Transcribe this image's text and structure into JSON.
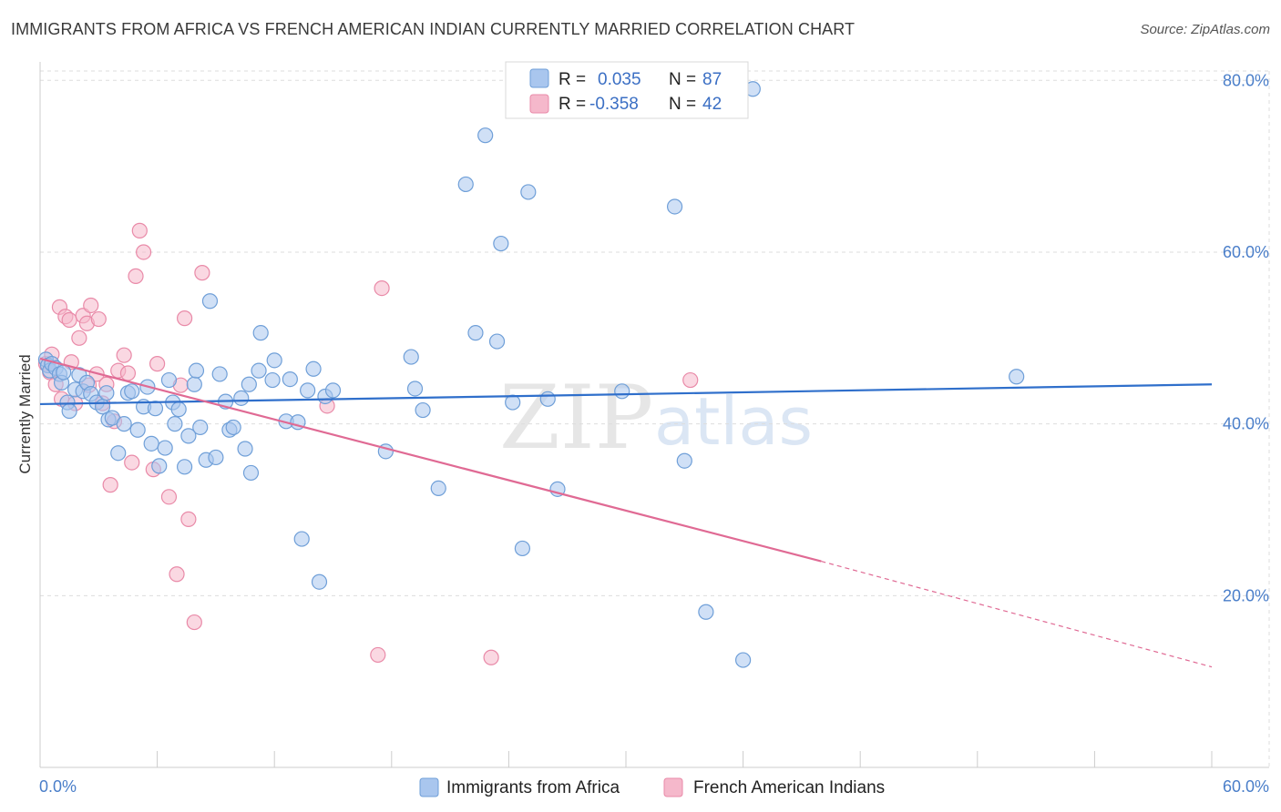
{
  "header": {
    "title": "IMMIGRANTS FROM AFRICA VS FRENCH AMERICAN INDIAN CURRENTLY MARRIED CORRELATION CHART",
    "source": "Source: ZipAtlas.com"
  },
  "watermark": {
    "zip": "ZIP",
    "atlas": "atlas"
  },
  "legend": {
    "rows": [
      {
        "r_label": "R =",
        "r_value": "0.035",
        "n_label": "N =",
        "n_value": "87"
      },
      {
        "r_label": "R =",
        "r_value": "-0.358",
        "n_label": "N =",
        "n_value": "42"
      }
    ]
  },
  "colors": {
    "blue_fill": "#a9c6ee",
    "blue_stroke": "#6f9fd8",
    "blue_line": "#2f6fcb",
    "pink_fill": "#f5b8cb",
    "pink_stroke": "#e98aa8",
    "pink_line": "#e06a94",
    "tick_text": "#4a7ec9",
    "grid": "#dddddd"
  },
  "chart_data": {
    "type": "scatter",
    "title": "IMMIGRANTS FROM AFRICA VS FRENCH AMERICAN INDIAN CURRENTLY MARRIED CORRELATION CHART",
    "xlabel": "",
    "ylabel": "Currently Married",
    "xlim": [
      0,
      60
    ],
    "ylim": [
      0,
      83
    ],
    "x_tick_labels": [
      "0.0%",
      "60.0%"
    ],
    "y_ticks": [
      20,
      40,
      60,
      80
    ],
    "y_tick_labels": [
      "20.0%",
      "40.0%",
      "60.0%",
      "80.0%"
    ],
    "grid": true,
    "legend_position": "top-center",
    "series": [
      {
        "name": "Immigrants from Africa",
        "color": "#a9c6ee",
        "trend": {
          "x": [
            0,
            60
          ],
          "y": [
            42.3,
            44.6
          ],
          "style": "solid"
        },
        "points": [
          [
            0.3,
            47.5
          ],
          [
            0.4,
            46.8
          ],
          [
            0.5,
            46.2
          ],
          [
            0.6,
            47.0
          ],
          [
            0.8,
            46.5
          ],
          [
            1.0,
            45.8
          ],
          [
            1.1,
            44.8
          ],
          [
            1.2,
            46.0
          ],
          [
            1.4,
            42.5
          ],
          [
            1.5,
            41.5
          ],
          [
            1.8,
            44.0
          ],
          [
            2.0,
            45.7
          ],
          [
            2.2,
            43.8
          ],
          [
            2.4,
            44.8
          ],
          [
            2.6,
            43.5
          ],
          [
            2.9,
            42.5
          ],
          [
            3.2,
            42.0
          ],
          [
            3.4,
            43.6
          ],
          [
            3.5,
            40.5
          ],
          [
            3.7,
            40.7
          ],
          [
            4.0,
            36.6
          ],
          [
            4.3,
            40.0
          ],
          [
            4.5,
            43.6
          ],
          [
            4.7,
            43.8
          ],
          [
            5.0,
            39.3
          ],
          [
            5.3,
            42.0
          ],
          [
            5.5,
            44.3
          ],
          [
            5.7,
            37.7
          ],
          [
            5.9,
            41.8
          ],
          [
            6.1,
            35.1
          ],
          [
            6.4,
            37.2
          ],
          [
            6.6,
            45.1
          ],
          [
            6.8,
            42.5
          ],
          [
            6.9,
            40.0
          ],
          [
            7.1,
            41.7
          ],
          [
            7.4,
            35.0
          ],
          [
            7.6,
            38.6
          ],
          [
            7.9,
            44.6
          ],
          [
            8.0,
            46.2
          ],
          [
            8.2,
            39.6
          ],
          [
            8.5,
            35.8
          ],
          [
            8.7,
            54.3
          ],
          [
            9.0,
            36.1
          ],
          [
            9.2,
            45.8
          ],
          [
            9.5,
            42.6
          ],
          [
            9.7,
            39.3
          ],
          [
            9.9,
            39.6
          ],
          [
            10.3,
            43.0
          ],
          [
            10.5,
            37.1
          ],
          [
            10.7,
            44.6
          ],
          [
            10.8,
            34.3
          ],
          [
            11.2,
            46.2
          ],
          [
            11.3,
            50.6
          ],
          [
            11.9,
            45.1
          ],
          [
            12.0,
            47.4
          ],
          [
            12.6,
            40.3
          ],
          [
            12.8,
            45.2
          ],
          [
            13.2,
            40.2
          ],
          [
            13.4,
            26.6
          ],
          [
            13.7,
            43.9
          ],
          [
            14.0,
            46.4
          ],
          [
            14.3,
            21.6
          ],
          [
            14.6,
            43.2
          ],
          [
            15.0,
            43.9
          ],
          [
            17.7,
            36.8
          ],
          [
            19.0,
            47.8
          ],
          [
            19.2,
            44.1
          ],
          [
            19.6,
            41.6
          ],
          [
            20.4,
            32.5
          ],
          [
            21.8,
            67.9
          ],
          [
            22.3,
            50.6
          ],
          [
            22.8,
            73.6
          ],
          [
            23.4,
            49.6
          ],
          [
            23.6,
            61.0
          ],
          [
            24.2,
            42.5
          ],
          [
            24.7,
            25.5
          ],
          [
            25.0,
            67.0
          ],
          [
            26.0,
            42.9
          ],
          [
            26.5,
            32.4
          ],
          [
            29.8,
            43.8
          ],
          [
            30.0,
            79.1
          ],
          [
            32.5,
            65.3
          ],
          [
            33.0,
            35.7
          ],
          [
            34.1,
            18.1
          ],
          [
            36.0,
            12.5
          ],
          [
            36.5,
            79.0
          ],
          [
            50.0,
            45.5
          ]
        ]
      },
      {
        "name": "French American Indians",
        "color": "#f5b8cb",
        "trend": {
          "x": [
            0,
            40,
            60
          ],
          "y": [
            47.6,
            24.0,
            11.7
          ],
          "style": "solid-then-dashed"
        },
        "points": [
          [
            0.3,
            47.0
          ],
          [
            0.5,
            46.0
          ],
          [
            0.6,
            48.1
          ],
          [
            0.8,
            44.6
          ],
          [
            1.0,
            53.6
          ],
          [
            1.1,
            42.9
          ],
          [
            1.3,
            52.5
          ],
          [
            1.5,
            52.1
          ],
          [
            1.6,
            47.2
          ],
          [
            1.8,
            42.4
          ],
          [
            2.0,
            50.0
          ],
          [
            2.2,
            52.6
          ],
          [
            2.4,
            51.7
          ],
          [
            2.6,
            53.8
          ],
          [
            2.9,
            45.8
          ],
          [
            3.0,
            52.2
          ],
          [
            3.2,
            42.4
          ],
          [
            3.4,
            44.6
          ],
          [
            3.6,
            32.9
          ],
          [
            3.8,
            40.3
          ],
          [
            4.0,
            46.2
          ],
          [
            4.3,
            48.0
          ],
          [
            4.5,
            45.9
          ],
          [
            4.9,
            57.2
          ],
          [
            5.1,
            62.5
          ],
          [
            5.3,
            60.0
          ],
          [
            5.8,
            34.7
          ],
          [
            6.0,
            47.0
          ],
          [
            6.6,
            31.5
          ],
          [
            7.0,
            22.5
          ],
          [
            7.2,
            44.5
          ],
          [
            7.4,
            52.3
          ],
          [
            7.6,
            28.9
          ],
          [
            7.9,
            16.9
          ],
          [
            8.3,
            57.6
          ],
          [
            14.7,
            42.1
          ],
          [
            17.5,
            55.8
          ],
          [
            17.3,
            13.1
          ],
          [
            23.1,
            12.8
          ],
          [
            33.3,
            45.1
          ],
          [
            4.7,
            35.5
          ],
          [
            2.5,
            44.5
          ]
        ]
      }
    ]
  }
}
